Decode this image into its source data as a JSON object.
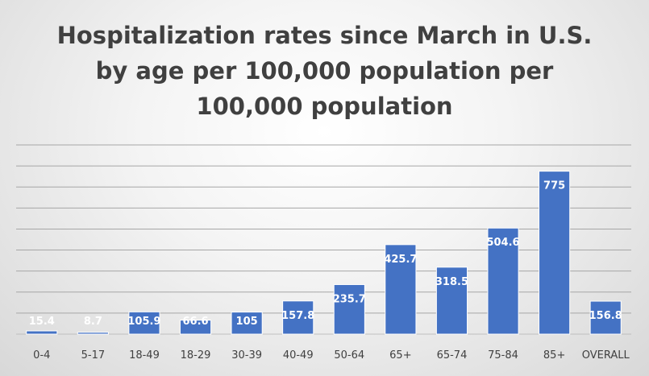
{
  "chart_data": {
    "type": "bar",
    "title_lines": [
      "Hospitalization rates since March in U.S.",
      "by age per 100,000 population per",
      "100,000 population"
    ],
    "categories": [
      "0-4",
      "5-17",
      "18-49",
      "18-29",
      "30-39",
      "40-49",
      "50-64",
      "65+",
      "65-74",
      "75-84",
      "85+",
      "OVERALL"
    ],
    "values": [
      15.4,
      8.7,
      105.9,
      66.6,
      105,
      157.8,
      235.7,
      425.7,
      318.5,
      504.6,
      775,
      156.8
    ],
    "value_labels": [
      "15.4",
      "8.7",
      "105.9",
      "66.6",
      "105",
      "157.8",
      "235.7",
      "425.7",
      "318.5",
      "504.6",
      "775",
      "156.8"
    ],
    "xlabel": "",
    "ylabel": "",
    "ylim": [
      0,
      900
    ],
    "grid": true,
    "legend": "none",
    "bar_color": "#4472c4",
    "bar_edge_color": "#ffffff"
  }
}
